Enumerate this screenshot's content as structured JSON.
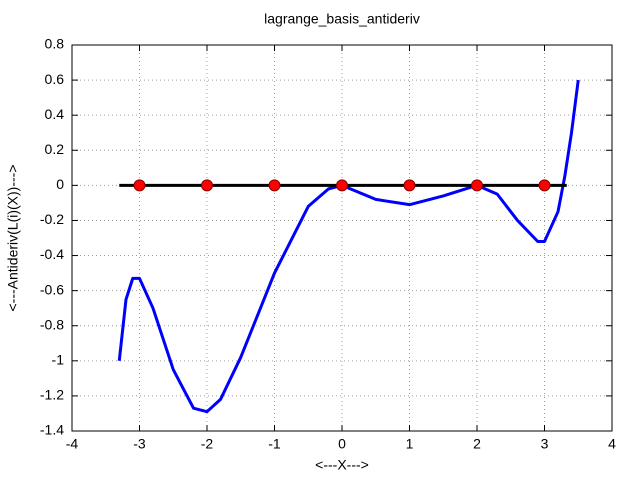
{
  "chart_data": {
    "type": "line",
    "title": "lagrange_basis_antideriv",
    "xlabel": "<---X--->",
    "ylabel": "<---Antideriv(L(i)(X))--->",
    "xlim": [
      -4,
      4
    ],
    "ylim": [
      -1.4,
      0.8
    ],
    "xticks": [
      -4,
      -3,
      -2,
      -1,
      0,
      1,
      2,
      3,
      4
    ],
    "yticks": [
      0.8,
      0.6,
      0.4,
      0.2,
      0,
      -0.2,
      -0.4,
      -0.6,
      -0.8,
      -1,
      -1.2,
      -1.4
    ],
    "grid": true,
    "series": [
      {
        "color": "#0000ff",
        "style": "line",
        "x": [
          -3.3,
          -3.2,
          -3.1,
          -3.0,
          -2.8,
          -2.5,
          -2.2,
          -2.0,
          -1.8,
          -1.5,
          -1.0,
          -0.5,
          -0.2,
          0,
          0.5,
          1.0,
          1.5,
          2.0,
          2.3,
          2.6,
          2.9,
          3.0,
          3.2,
          3.3,
          3.4,
          3.5
        ],
        "values": [
          -1.0,
          -0.65,
          -0.53,
          -0.53,
          -0.7,
          -1.05,
          -1.27,
          -1.29,
          -1.22,
          -0.98,
          -0.5,
          -0.12,
          -0.02,
          0,
          -0.08,
          -0.11,
          -0.06,
          0,
          -0.05,
          -0.2,
          -0.32,
          -0.32,
          -0.15,
          0.05,
          0.3,
          0.6
        ]
      },
      {
        "color": "#000000",
        "style": "line",
        "x": [
          -3.3,
          3.33
        ],
        "values": [
          0,
          0
        ]
      },
      {
        "color": "#ff0000",
        "style": "points",
        "x": [
          -3,
          -2,
          -1,
          0,
          1,
          2,
          3
        ],
        "values": [
          0,
          0,
          0,
          0,
          0,
          0,
          0
        ]
      }
    ]
  }
}
